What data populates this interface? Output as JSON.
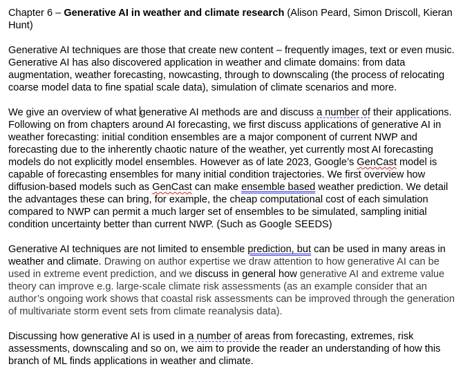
{
  "doc": {
    "heading": {
      "prefix": "Chapter 6 – ",
      "title": "Generative AI in weather and climate research",
      "authors": " (Alison Peard, Simon Driscoll, Kieran Hunt)"
    },
    "p1": "Generative AI techniques are those that create new content – frequently images, text or even music. Generative AI has also discovered application in weather and climate domains: from data augmentation, weather forecasting, nowcasting, through to downscaling (the process of relocating coarse model data to fine spatial scale data), simulation of climate scenarios and more.",
    "p2": {
      "s1": "We give an overview of what ",
      "s2": "generative AI methods are and discuss ",
      "s3": "a number of",
      "s4": " their applications. Following on from chapters around AI forecasting, we first discuss applications of generative AI in weather forecasting: initial condition ensembles are a major component of current NWP and forecasting due to the inherently chaotic nature of the weather, yet currently most AI forecasting models do not explicitly model ensembles. However as of late 2023, Google’s ",
      "s5": "GenCast",
      "s6": " model is capable of forecasting ensembles for many initial condition trajectories. We first overview how diffusion-based models such as ",
      "s7": "GenCast",
      "s8": " can make ",
      "s9": "ensemble based",
      "s10": " weather prediction. We detail the advantages these can bring, for example, the cheap computational cost of each simulation compared to NWP can permit a much larger set of ensembles to be simulated, sampling initial condition uncertainty better than current NWP. (Such as Google SEEDS)"
    },
    "p3": {
      "s1": "Generative AI techniques are not limited to ensemble ",
      "s2": "prediction, but",
      "s3": " can be used in many areas in weather and climate. ",
      "s4": "Drawing on author expertise we draw attention to how generative AI can be used in extreme event prediction, and we ",
      "s5": "discuss in general how ",
      "s6": "generative AI and extreme value theory can improve e.g. large-scale climate risk assessments (as an example consider that an author’s ongoing work shows that coastal risk assessments can be improved through the generation of multivariate storm event sets from climate reanalysis data)."
    },
    "p4": {
      "s1": "Discussing how generative AI is used in ",
      "s2": "a number of",
      "s3": " areas from forecasting, extremes, risk assessments, downscaling and so on, we aim to provide the reader an understanding of how this branch of ML finds applications in weather and climate."
    }
  }
}
